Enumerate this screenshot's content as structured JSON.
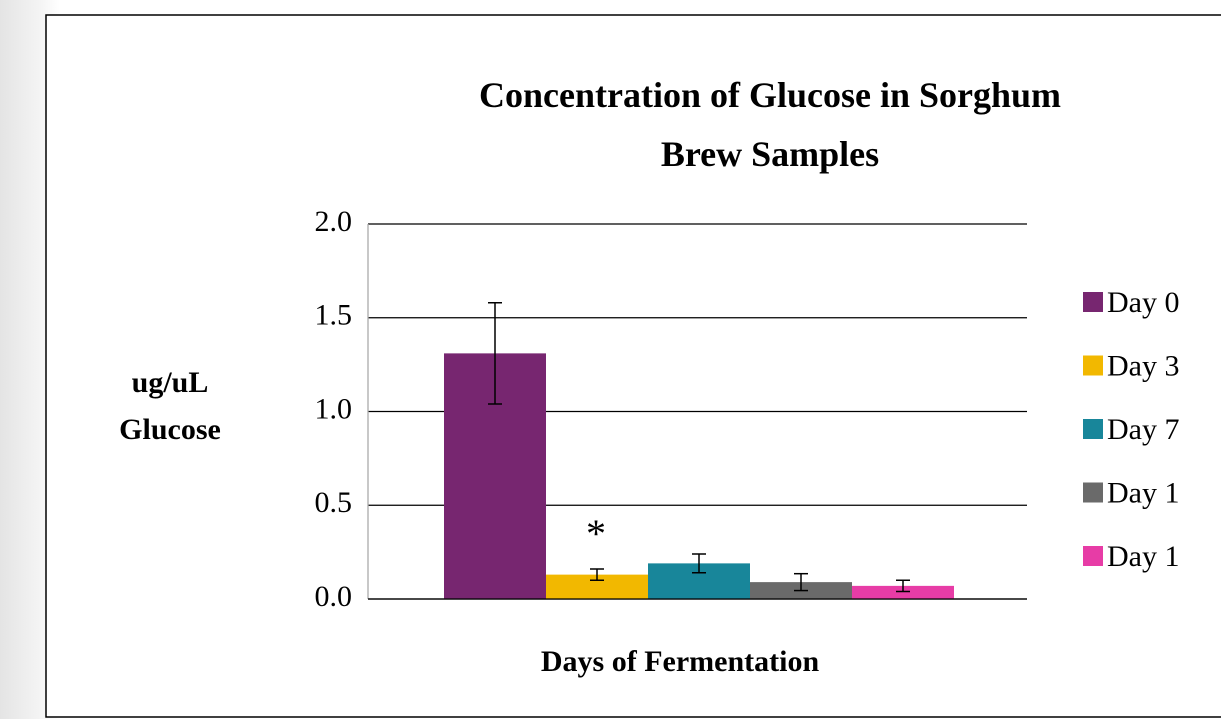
{
  "chart_data": {
    "type": "bar",
    "title": "Concentration of Glucose in Sorghum Brew Samples",
    "y_label": "ug/uL Glucose",
    "x_label": "Days of Fermentation",
    "annotation": "*",
    "categories": [
      null
    ],
    "series": [
      {
        "name": "Day 0",
        "color": "#772670",
        "values": [
          1.31
        ],
        "errors": [
          0.27
        ]
      },
      {
        "name": "Day 3",
        "color": "#f2b800",
        "values": [
          0.13
        ],
        "errors": [
          0.03
        ]
      },
      {
        "name": "Day 7",
        "color": "#18869a",
        "values": [
          0.19
        ],
        "errors": [
          0.05
        ]
      },
      {
        "name": "Day 1",
        "color": "#6a6a6a",
        "values": [
          0.09
        ],
        "errors": [
          0.045
        ]
      },
      {
        "name": "Day 1",
        "color": "#e73ca6",
        "values": [
          0.07
        ],
        "errors": [
          0.03
        ]
      }
    ],
    "ylim": [
      0,
      2
    ],
    "yticks": [
      {
        "value": 0,
        "label": "0.0"
      },
      {
        "value": 0.5,
        "label": "0.5"
      },
      {
        "value": 1,
        "label": "1.0"
      },
      {
        "value": 1.5,
        "label": "1.5"
      },
      {
        "value": 2,
        "label": "2.0"
      }
    ],
    "grid": true,
    "legend": "right"
  }
}
